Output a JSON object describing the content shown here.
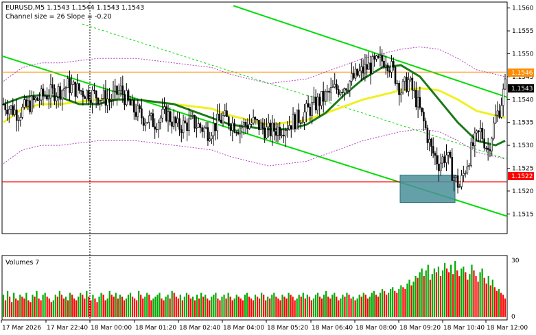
{
  "header": {
    "symbol_line": "EURUSD,M5  1.1543 1.1544 1.1543 1.1543",
    "channel_line": "Channel size = 26 Slope = -0.20"
  },
  "volume_panel": {
    "title": "Volumes 7",
    "axis_labels": [
      "30",
      "0"
    ]
  },
  "price_axis": {
    "labels": [
      "1.1560",
      "1.1555",
      "1.1550",
      "1.1545",
      "1.1540",
      "1.1535",
      "1.1530",
      "1.1525",
      "1.1520",
      "1.1515"
    ],
    "current_tag": "1.1543",
    "orange_tag": "1.1546",
    "red_tag": "1.1522"
  },
  "time_axis": {
    "labels": [
      "17 Mar 2026",
      "17 Mar 22:40",
      "18 Mar 00:00",
      "18 Mar 01:20",
      "18 Mar 02:40",
      "18 Mar 04:00",
      "18 Mar 05:20",
      "18 Mar 06:40",
      "18 Mar 08:00",
      "18 Mar 09:20",
      "18 Mar 10:40",
      "18 Mar 12:00"
    ]
  },
  "colors": {
    "bull": "#000000",
    "bear": "#000000",
    "vol_up": "#00aa00",
    "vol_down": "#ff0000",
    "channel": "#00dd00",
    "ma_fast": "#1a7a1a",
    "ma_slow": "#f0f020",
    "envelope": "#b040c0",
    "orange_line": "#ff8c00",
    "red_line": "#ff0000",
    "box": "#4a8f9a"
  },
  "chart_data": {
    "type": "candlestick",
    "symbol": "EURUSD",
    "timeframe": "M5",
    "ylim": [
      1.1511,
      1.1561
    ],
    "levels": {
      "orange": 1.1546,
      "red": 1.1522,
      "current": 1.1543
    },
    "ma_fast_points": [
      [
        0,
        1.1539
      ],
      [
        10,
        1.15405
      ],
      [
        20,
        1.1541
      ],
      [
        30,
        1.15405
      ],
      [
        40,
        1.1539
      ],
      [
        50,
        1.1539
      ],
      [
        60,
        1.154
      ],
      [
        70,
        1.154
      ],
      [
        80,
        1.15395
      ],
      [
        90,
        1.1539
      ],
      [
        100,
        1.15375
      ],
      [
        110,
        1.1536
      ],
      [
        120,
        1.15345
      ],
      [
        130,
        1.1534
      ],
      [
        140,
        1.15335
      ],
      [
        150,
        1.15335
      ],
      [
        160,
        1.15345
      ],
      [
        170,
        1.1537
      ],
      [
        180,
        1.1541
      ],
      [
        190,
        1.15445
      ],
      [
        200,
        1.1547
      ],
      [
        210,
        1.15475
      ],
      [
        220,
        1.1545
      ],
      [
        230,
        1.154
      ],
      [
        240,
        1.1535
      ],
      [
        250,
        1.1531
      ],
      [
        260,
        1.153
      ],
      [
        265,
        1.1531
      ]
    ],
    "ma_slow_points": [
      [
        0,
        1.1535
      ],
      [
        10,
        1.1538
      ],
      [
        20,
        1.1539
      ],
      [
        30,
        1.1539
      ],
      [
        40,
        1.15395
      ],
      [
        50,
        1.154
      ],
      [
        60,
        1.154
      ],
      [
        70,
        1.154
      ],
      [
        80,
        1.15395
      ],
      [
        90,
        1.1539
      ],
      [
        100,
        1.15385
      ],
      [
        110,
        1.1538
      ],
      [
        120,
        1.15365
      ],
      [
        130,
        1.15355
      ],
      [
        140,
        1.15345
      ],
      [
        150,
        1.1535
      ],
      [
        160,
        1.15355
      ],
      [
        170,
        1.1537
      ],
      [
        180,
        1.15385
      ],
      [
        190,
        1.154
      ],
      [
        200,
        1.1541
      ],
      [
        210,
        1.1542
      ],
      [
        220,
        1.15425
      ],
      [
        230,
        1.1542
      ],
      [
        240,
        1.154
      ],
      [
        250,
        1.15375
      ],
      [
        260,
        1.15365
      ],
      [
        265,
        1.1536
      ]
    ],
    "volumes": [
      12,
      9,
      14,
      11,
      8,
      13,
      10,
      9,
      12,
      11,
      10,
      13,
      9,
      8,
      12,
      11,
      14,
      10,
      9,
      12,
      13,
      11,
      10,
      8,
      9,
      12,
      11,
      14,
      12,
      10,
      11,
      9,
      13,
      12,
      10,
      9,
      11,
      13,
      12,
      10,
      14,
      11,
      9,
      12,
      10,
      8,
      11,
      13,
      12,
      9,
      10,
      14,
      12,
      11,
      13,
      10,
      12,
      11,
      9,
      10,
      12,
      13,
      11,
      10,
      9,
      14,
      12,
      10,
      11,
      13,
      12,
      9,
      10,
      11,
      12,
      13,
      10,
      9,
      11,
      12,
      10,
      14,
      13,
      11,
      10,
      12,
      9,
      11,
      13,
      12,
      10,
      11,
      9,
      12,
      10,
      13,
      11,
      12,
      10,
      9,
      11,
      12,
      13,
      10,
      9,
      11,
      12,
      10,
      13,
      11,
      9,
      10,
      12,
      11,
      10,
      9,
      12,
      13,
      11,
      10,
      9,
      12,
      11,
      10,
      13,
      12,
      9,
      11,
      10,
      12,
      13,
      11,
      10,
      9,
      12,
      11,
      10,
      13,
      12,
      11,
      9,
      10,
      12,
      11,
      13,
      10,
      12,
      11,
      9,
      10,
      12,
      13,
      11,
      10,
      12,
      14,
      11,
      10,
      12,
      13,
      11,
      9,
      10,
      12,
      11,
      13,
      12,
      10,
      11,
      9,
      10,
      12,
      11,
      13,
      12,
      10,
      11,
      13,
      14,
      12,
      11,
      13,
      15,
      14,
      12,
      13,
      15,
      16,
      14,
      13,
      15,
      17,
      16,
      15,
      18,
      20,
      17,
      19,
      22,
      21,
      24,
      26,
      22,
      25,
      28,
      20,
      23,
      26,
      24,
      27,
      22,
      25,
      29,
      26,
      24,
      28,
      23,
      30,
      25,
      22,
      26,
      27,
      24,
      20,
      23,
      28,
      25,
      22,
      19,
      24,
      26,
      21,
      18,
      22,
      17,
      20,
      16,
      14,
      15,
      13,
      12,
      10
    ],
    "candles": []
  }
}
